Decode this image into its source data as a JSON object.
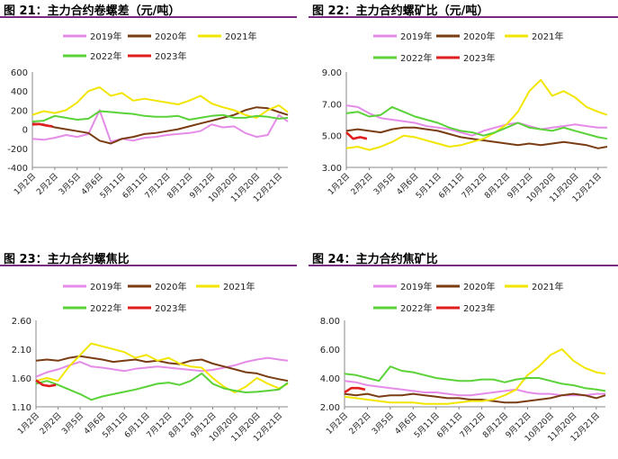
{
  "legend_labels": [
    "2019年",
    "2020年",
    "2021年",
    "2022年",
    "2023年"
  ],
  "colors": {
    "y2019": "#e58be8",
    "y2020": "#7a3d13",
    "y2021": "#f2e600",
    "y2022": "#5ad238",
    "y2023": "#e11e1e",
    "rule": "#7b2a83"
  },
  "x_labels": [
    "1月2日",
    "2月2日",
    "3月5日",
    "4月6日",
    "5月11日",
    "6月11日",
    "7月12日",
    "8月12日",
    "9月12日",
    "10月20日",
    "11月20日",
    "12月21日"
  ],
  "chart_data": [
    {
      "title": "图 21：主力合约卷螺差（元/吨）",
      "type": "line",
      "ylim": [
        -400,
        600
      ],
      "yticks": [
        -400,
        -200,
        0,
        200,
        400,
        600
      ],
      "ytick_labels": [
        "-400",
        "-200",
        "0",
        "200",
        "400",
        "600"
      ],
      "xlabels_index": [
        0,
        1,
        2,
        3,
        4,
        5,
        6,
        7,
        8,
        9,
        10,
        11
      ],
      "legend": "top",
      "series": [
        {
          "name": "2019年",
          "key": "y2019",
          "x": [
            0,
            0.5,
            1,
            1.5,
            2,
            2.5,
            3,
            3.5,
            4,
            4.5,
            5,
            5.5,
            6,
            6.5,
            7,
            7.5,
            8,
            8.5,
            9,
            9.5,
            10,
            10.5,
            11,
            11.4
          ],
          "y": [
            -100,
            -110,
            -90,
            -60,
            -80,
            -50,
            200,
            -130,
            -100,
            -120,
            -90,
            -80,
            -60,
            -50,
            -40,
            -20,
            50,
            20,
            30,
            -40,
            -80,
            -60,
            150,
            80
          ]
        },
        {
          "name": "2020年",
          "key": "y2020",
          "x": [
            0,
            0.5,
            1,
            1.5,
            2,
            2.5,
            3,
            3.5,
            4,
            4.5,
            5,
            5.5,
            6,
            6.5,
            7,
            7.5,
            8,
            8.5,
            9,
            9.5,
            10,
            10.5,
            11,
            11.4
          ],
          "y": [
            60,
            50,
            20,
            0,
            -20,
            -40,
            -120,
            -150,
            -100,
            -80,
            -50,
            -40,
            -20,
            0,
            30,
            60,
            90,
            120,
            150,
            200,
            230,
            220,
            180,
            150
          ]
        },
        {
          "name": "2021年",
          "key": "y2021",
          "x": [
            0,
            0.5,
            1,
            1.5,
            2,
            2.5,
            3,
            3.5,
            4,
            4.5,
            5,
            5.5,
            6,
            6.5,
            7,
            7.5,
            8,
            8.5,
            9,
            9.5,
            10,
            10.5,
            11,
            11.4
          ],
          "y": [
            150,
            190,
            170,
            200,
            280,
            400,
            440,
            350,
            380,
            300,
            320,
            300,
            280,
            260,
            300,
            350,
            270,
            230,
            200,
            150,
            120,
            200,
            250,
            180
          ]
        },
        {
          "name": "2022年",
          "key": "y2022",
          "x": [
            0,
            0.5,
            1,
            1.5,
            2,
            2.5,
            3,
            3.5,
            4,
            4.5,
            5,
            5.5,
            6,
            6.5,
            7,
            7.5,
            8,
            8.5,
            9,
            9.5,
            10,
            10.5,
            11,
            11.4
          ],
          "y": [
            80,
            90,
            140,
            120,
            100,
            110,
            190,
            180,
            170,
            160,
            140,
            130,
            130,
            140,
            100,
            120,
            140,
            150,
            120,
            120,
            140,
            130,
            110,
            120
          ]
        },
        {
          "name": "2023年",
          "key": "y2023",
          "x": [
            0,
            0.3,
            0.6,
            0.9
          ],
          "y": [
            50,
            55,
            40,
            30
          ]
        }
      ]
    },
    {
      "title": "图 22：主力合约螺矿比（元/吨）",
      "type": "line",
      "ylim": [
        3.0,
        9.0
      ],
      "yticks": [
        3.0,
        5.0,
        7.0,
        9.0
      ],
      "ytick_labels": [
        "3.00",
        "5.00",
        "7.00",
        "9.00"
      ],
      "legend": "top",
      "series": [
        {
          "name": "2019年",
          "key": "y2019",
          "x": [
            0,
            0.5,
            1,
            1.5,
            2,
            2.5,
            3,
            3.5,
            4,
            4.5,
            5,
            5.5,
            6,
            6.5,
            7,
            7.5,
            8,
            8.5,
            9,
            9.5,
            10,
            10.5,
            11,
            11.4
          ],
          "y": [
            6.9,
            6.8,
            6.4,
            6.1,
            6.0,
            5.9,
            5.8,
            5.6,
            5.5,
            5.4,
            5.2,
            5.0,
            5.3,
            5.5,
            5.7,
            5.8,
            5.6,
            5.4,
            5.5,
            5.6,
            5.7,
            5.6,
            5.5,
            5.5
          ]
        },
        {
          "name": "2020年",
          "key": "y2020",
          "x": [
            0,
            0.5,
            1,
            1.5,
            2,
            2.5,
            3,
            3.5,
            4,
            4.5,
            5,
            5.5,
            6,
            6.5,
            7,
            7.5,
            8,
            8.5,
            9,
            9.5,
            10,
            10.5,
            11,
            11.4
          ],
          "y": [
            5.3,
            5.4,
            5.3,
            5.2,
            5.4,
            5.5,
            5.5,
            5.4,
            5.3,
            5.1,
            4.9,
            4.8,
            4.7,
            4.6,
            4.5,
            4.4,
            4.5,
            4.4,
            4.5,
            4.6,
            4.5,
            4.4,
            4.2,
            4.3
          ]
        },
        {
          "name": "2021年",
          "key": "y2021",
          "x": [
            0,
            0.5,
            1,
            1.5,
            2,
            2.5,
            3,
            3.5,
            4,
            4.5,
            5,
            5.5,
            6,
            6.5,
            7,
            7.5,
            8,
            8.5,
            9,
            9.5,
            10,
            10.5,
            11,
            11.4
          ],
          "y": [
            4.2,
            4.3,
            4.1,
            4.3,
            4.6,
            5.0,
            4.9,
            4.7,
            4.5,
            4.3,
            4.4,
            4.6,
            4.8,
            5.2,
            5.7,
            6.5,
            7.8,
            8.5,
            7.5,
            7.8,
            7.4,
            6.8,
            6.5,
            6.3
          ]
        },
        {
          "name": "2022年",
          "key": "y2022",
          "x": [
            0,
            0.5,
            1,
            1.5,
            2,
            2.5,
            3,
            3.5,
            4,
            4.5,
            5,
            5.5,
            6,
            6.5,
            7,
            7.5,
            8,
            8.5,
            9,
            9.5,
            10,
            10.5,
            11,
            11.4
          ],
          "y": [
            6.4,
            6.5,
            6.2,
            6.3,
            6.8,
            6.5,
            6.2,
            6.0,
            5.8,
            5.5,
            5.3,
            5.2,
            5.0,
            5.2,
            5.5,
            5.8,
            5.5,
            5.4,
            5.3,
            5.5,
            5.3,
            5.1,
            4.9,
            4.8
          ]
        },
        {
          "name": "2023年",
          "key": "y2023",
          "x": [
            0,
            0.3,
            0.6,
            0.9
          ],
          "y": [
            5.2,
            4.8,
            4.9,
            4.8
          ]
        }
      ]
    },
    {
      "title": "图 23：主力合约螺焦比",
      "type": "line",
      "ylim": [
        1.1,
        2.6
      ],
      "yticks": [
        1.1,
        1.6,
        2.1,
        2.6
      ],
      "ytick_labels": [
        "1.10",
        "1.60",
        "2.10",
        "2.60"
      ],
      "legend": "top",
      "series": [
        {
          "name": "2019年",
          "key": "y2019",
          "x": [
            0,
            0.5,
            1,
            1.5,
            2,
            2.5,
            3,
            3.5,
            4,
            4.5,
            5,
            5.5,
            6,
            6.5,
            7,
            7.5,
            8,
            8.5,
            9,
            9.5,
            10,
            10.5,
            11,
            11.4
          ],
          "y": [
            1.62,
            1.7,
            1.75,
            1.82,
            1.88,
            1.8,
            1.78,
            1.75,
            1.72,
            1.76,
            1.78,
            1.8,
            1.78,
            1.76,
            1.74,
            1.72,
            1.74,
            1.78,
            1.82,
            1.88,
            1.92,
            1.95,
            1.92,
            1.9
          ]
        },
        {
          "name": "2020年",
          "key": "y2020",
          "x": [
            0,
            0.5,
            1,
            1.5,
            2,
            2.5,
            3,
            3.5,
            4,
            4.5,
            5,
            5.5,
            6,
            6.5,
            7,
            7.5,
            8,
            8.5,
            9,
            9.5,
            10,
            10.5,
            11,
            11.4
          ],
          "y": [
            1.9,
            1.92,
            1.9,
            1.95,
            1.98,
            1.95,
            1.92,
            1.88,
            1.9,
            1.92,
            1.88,
            1.9,
            1.86,
            1.84,
            1.9,
            1.92,
            1.85,
            1.8,
            1.75,
            1.7,
            1.68,
            1.62,
            1.58,
            1.55
          ]
        },
        {
          "name": "2021年",
          "key": "y2021",
          "x": [
            0,
            0.5,
            1,
            1.5,
            2,
            2.5,
            3,
            3.5,
            4,
            4.5,
            5,
            5.5,
            6,
            6.5,
            7,
            7.5,
            8,
            8.5,
            9,
            9.5,
            10,
            10.5,
            11,
            11.4
          ],
          "y": [
            1.55,
            1.6,
            1.55,
            1.8,
            2.0,
            2.2,
            2.15,
            2.1,
            2.05,
            1.95,
            2.0,
            1.9,
            1.95,
            1.85,
            1.8,
            1.78,
            1.6,
            1.45,
            1.35,
            1.45,
            1.6,
            1.5,
            1.42,
            1.5
          ]
        },
        {
          "name": "2022年",
          "key": "y2022",
          "x": [
            0,
            0.5,
            1,
            1.5,
            2,
            2.5,
            3,
            3.5,
            4,
            4.5,
            5,
            5.5,
            6,
            6.5,
            7,
            7.5,
            8,
            8.5,
            9,
            9.5,
            10,
            10.5,
            11,
            11.4
          ],
          "y": [
            1.5,
            1.55,
            1.48,
            1.4,
            1.32,
            1.22,
            1.28,
            1.32,
            1.36,
            1.4,
            1.45,
            1.5,
            1.52,
            1.48,
            1.55,
            1.68,
            1.5,
            1.42,
            1.38,
            1.35,
            1.36,
            1.38,
            1.4,
            1.52
          ]
        },
        {
          "name": "2023年",
          "key": "y2023",
          "x": [
            0,
            0.3,
            0.6,
            0.9
          ],
          "y": [
            1.56,
            1.48,
            1.46,
            1.48
          ]
        }
      ]
    },
    {
      "title": "图 24：主力合约焦矿比",
      "type": "line",
      "ylim": [
        2.0,
        8.0
      ],
      "yticks": [
        2.0,
        4.0,
        6.0,
        8.0
      ],
      "ytick_labels": [
        "2.00",
        "4.00",
        "6.00",
        "8.00"
      ],
      "legend": "top",
      "series": [
        {
          "name": "2019年",
          "key": "y2019",
          "x": [
            0,
            0.5,
            1,
            1.5,
            2,
            2.5,
            3,
            3.5,
            4,
            4.5,
            5,
            5.5,
            6,
            6.5,
            7,
            7.5,
            8,
            8.5,
            9,
            9.5,
            10,
            10.5,
            11,
            11.4
          ],
          "y": [
            3.8,
            3.7,
            3.5,
            3.4,
            3.3,
            3.2,
            3.1,
            3.0,
            3.0,
            2.9,
            2.8,
            2.8,
            2.9,
            3.0,
            3.1,
            3.2,
            3.0,
            2.9,
            2.9,
            2.8,
            2.8,
            2.8,
            2.9,
            2.9
          ]
        },
        {
          "name": "2020年",
          "key": "y2020",
          "x": [
            0,
            0.5,
            1,
            1.5,
            2,
            2.5,
            3,
            3.5,
            4,
            4.5,
            5,
            5.5,
            6,
            6.5,
            7,
            7.5,
            8,
            8.5,
            9,
            9.5,
            10,
            10.5,
            11,
            11.4
          ],
          "y": [
            2.9,
            2.8,
            2.9,
            2.7,
            2.8,
            2.8,
            2.9,
            2.8,
            2.7,
            2.6,
            2.6,
            2.5,
            2.5,
            2.4,
            2.3,
            2.3,
            2.4,
            2.5,
            2.6,
            2.8,
            2.9,
            2.8,
            2.6,
            2.8
          ]
        },
        {
          "name": "2021年",
          "key": "y2021",
          "x": [
            0,
            0.5,
            1,
            1.5,
            2,
            2.5,
            3,
            3.5,
            4,
            4.5,
            5,
            5.5,
            6,
            6.5,
            7,
            7.5,
            8,
            8.5,
            9,
            9.5,
            10,
            10.5,
            11,
            11.4
          ],
          "y": [
            2.7,
            2.6,
            2.5,
            2.4,
            2.3,
            2.3,
            2.3,
            2.2,
            2.2,
            2.2,
            2.3,
            2.4,
            2.4,
            2.5,
            2.8,
            3.2,
            4.2,
            4.8,
            5.6,
            6.0,
            5.2,
            4.7,
            4.4,
            4.3
          ]
        },
        {
          "name": "2022年",
          "key": "y2022",
          "x": [
            0,
            0.5,
            1,
            1.5,
            2,
            2.5,
            3,
            3.5,
            4,
            4.5,
            5,
            5.5,
            6,
            6.5,
            7,
            7.5,
            8,
            8.5,
            9,
            9.5,
            10,
            10.5,
            11,
            11.4
          ],
          "y": [
            4.3,
            4.2,
            4.0,
            3.8,
            4.8,
            4.5,
            4.4,
            4.2,
            4.0,
            3.9,
            3.8,
            3.8,
            3.9,
            3.9,
            3.7,
            3.9,
            4.0,
            4.0,
            3.8,
            3.6,
            3.5,
            3.3,
            3.2,
            3.1
          ]
        },
        {
          "name": "2023年",
          "key": "y2023",
          "x": [
            0,
            0.3,
            0.6,
            0.9
          ],
          "y": [
            3.0,
            3.3,
            3.3,
            3.2
          ]
        }
      ]
    }
  ]
}
